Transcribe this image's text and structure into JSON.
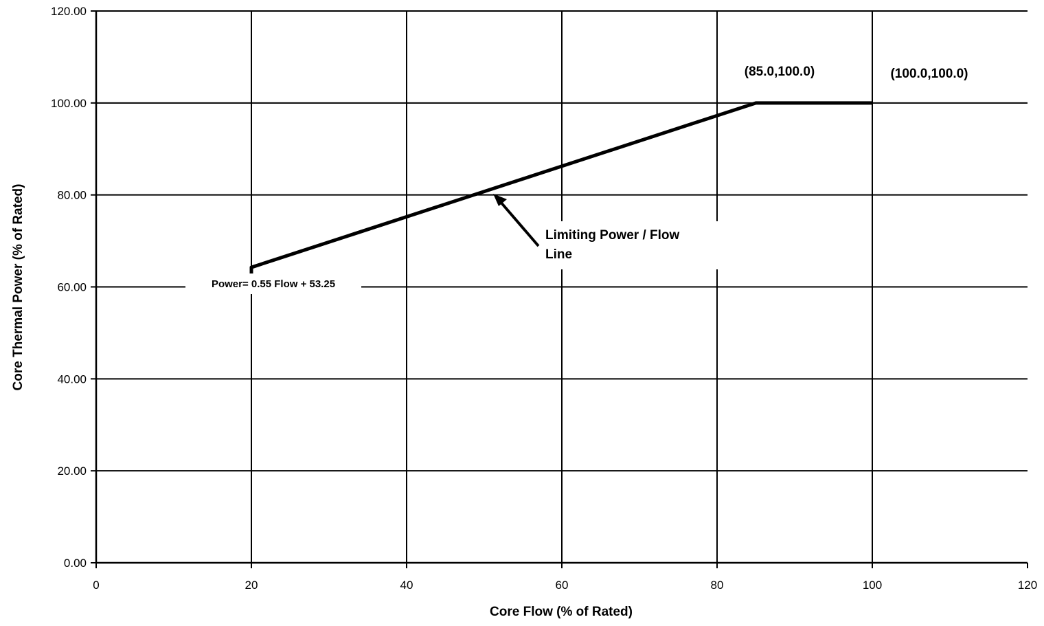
{
  "chart_data": {
    "type": "line",
    "xlabel": "Core Flow (% of Rated)",
    "ylabel": "Core Thermal Power (% of Rated)",
    "xlim": [
      0,
      120
    ],
    "ylim": [
      0,
      120
    ],
    "x_ticks": [
      0,
      20,
      40,
      60,
      80,
      100,
      120
    ],
    "x_tick_labels": [
      "0",
      "20",
      "40",
      "60",
      "80",
      "100",
      "120"
    ],
    "y_ticks": [
      0,
      20,
      40,
      60,
      80,
      100,
      120
    ],
    "y_tick_labels": [
      "0.00",
      "20.00",
      "40.00",
      "60.00",
      "80.00",
      "100.00",
      "120.00"
    ],
    "grid": true,
    "series": [
      {
        "points": [
          {
            "x": 20,
            "y": 60
          },
          {
            "x": 20,
            "y": 64.25
          },
          {
            "x": 85,
            "y": 100
          },
          {
            "x": 100,
            "y": 100
          }
        ]
      }
    ],
    "annotations": {
      "point_85": "(85.0,100.0)",
      "point_100": "(100.0,100.0)",
      "limit_line": "Limiting Power / Flow Line",
      "limit_line_l1": "Limiting Power / Flow",
      "limit_line_l2": "Line",
      "equation": "Power= 0.55 Flow + 53.25"
    }
  }
}
